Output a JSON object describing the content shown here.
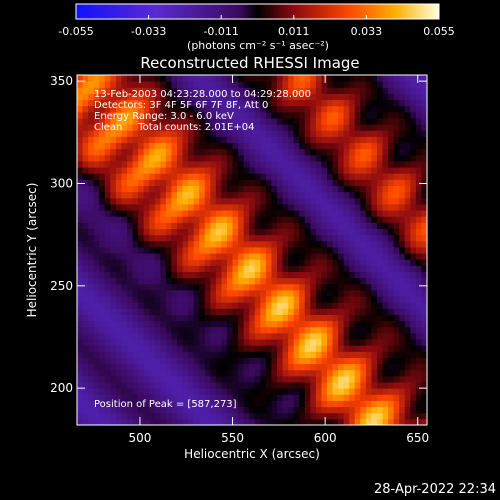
{
  "chart_data": {
    "type": "heatmap",
    "title": "Reconstructed RHESSI Image",
    "xlabel": "Heliocentric X (arcsec)",
    "ylabel": "Heliocentric Y (arcsec)",
    "xlim": [
      466,
      655
    ],
    "ylim": [
      182,
      353
    ],
    "x_ticks": [
      500,
      550,
      600,
      650
    ],
    "y_ticks": [
      200,
      250,
      300,
      350
    ],
    "colorbar": {
      "min": -0.055,
      "max": 0.055,
      "ticks": [
        "-0.055",
        "-0.033",
        "-0.011",
        "0.011",
        "0.033",
        "0.055"
      ],
      "unit_label": "(photons cm⁻² s⁻¹ asec⁻²)"
    },
    "annotations": [
      "13-Feb-2003 04:23:28.000 to 04:29:28.000",
      "Detectors: 3F 4F 5F 6F 7F 8F, Att 0",
      "Energy Range: 3.0 - 6.0 keV",
      "Clean     Total counts: 2.01E+04"
    ],
    "peak_label": "Position of Peak = [587,273]",
    "peak": {
      "x": 587,
      "y": 273
    }
  },
  "footer": {
    "timestamp": "28-Apr-2022 22:34"
  }
}
